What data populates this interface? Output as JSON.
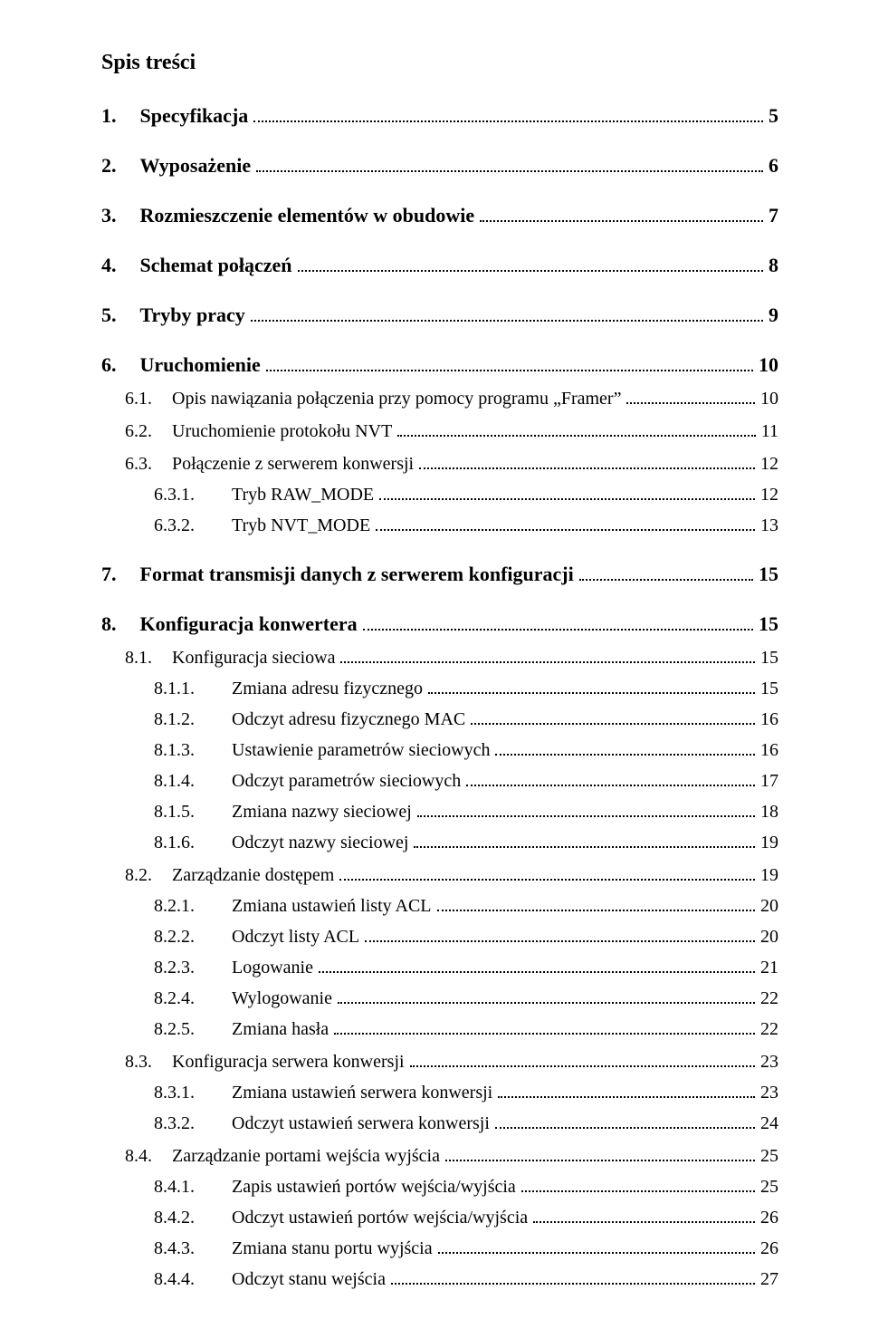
{
  "title": "Spis treści",
  "toc": [
    {
      "level": 1,
      "num": "1.",
      "text": "Specyfikacja",
      "page": "5"
    },
    {
      "level": 1,
      "num": "2.",
      "text": "Wyposażenie",
      "page": "6"
    },
    {
      "level": 1,
      "num": "3.",
      "text": "Rozmieszczenie elementów w obudowie",
      "page": "7"
    },
    {
      "level": 1,
      "num": "4.",
      "text": "Schemat połączeń",
      "page": "8"
    },
    {
      "level": 1,
      "num": "5.",
      "text": "Tryby pracy",
      "page": "9"
    },
    {
      "level": 1,
      "num": "6.",
      "text": "Uruchomienie",
      "page": "10"
    },
    {
      "level": 2,
      "num": "6.1.",
      "text": "Opis nawiązania połączenia przy pomocy programu „Framer”",
      "page": "10"
    },
    {
      "level": 2,
      "num": "6.2.",
      "text": "Uruchomienie protokołu NVT",
      "page": "11"
    },
    {
      "level": 2,
      "num": "6.3.",
      "text": "Połączenie z serwerem konwersji",
      "page": "12"
    },
    {
      "level": 3,
      "num": "6.3.1.",
      "text": "Tryb RAW_MODE",
      "page": "12"
    },
    {
      "level": 3,
      "num": "6.3.2.",
      "text": "Tryb NVT_MODE",
      "page": "13"
    },
    {
      "level": 1,
      "num": "7.",
      "text": "Format transmisji danych z serwerem konfiguracji",
      "page": "15"
    },
    {
      "level": 1,
      "num": "8.",
      "text": "Konfiguracja konwertera",
      "page": "15"
    },
    {
      "level": 2,
      "num": "8.1.",
      "text": "Konfiguracja sieciowa",
      "page": "15"
    },
    {
      "level": 3,
      "num": "8.1.1.",
      "text": "Zmiana adresu fizycznego",
      "page": "15"
    },
    {
      "level": 3,
      "num": "8.1.2.",
      "text": "Odczyt adresu fizycznego MAC",
      "page": "16"
    },
    {
      "level": 3,
      "num": "8.1.3.",
      "text": "Ustawienie parametrów sieciowych",
      "page": "16"
    },
    {
      "level": 3,
      "num": "8.1.4.",
      "text": "Odczyt parametrów sieciowych",
      "page": "17"
    },
    {
      "level": 3,
      "num": "8.1.5.",
      "text": "Zmiana nazwy sieciowej",
      "page": "18"
    },
    {
      "level": 3,
      "num": "8.1.6.",
      "text": "Odczyt nazwy sieciowej",
      "page": "19"
    },
    {
      "level": 2,
      "num": "8.2.",
      "text": "Zarządzanie dostępem",
      "page": "19"
    },
    {
      "level": 3,
      "num": "8.2.1.",
      "text": "Zmiana ustawień listy ACL",
      "page": "20"
    },
    {
      "level": 3,
      "num": "8.2.2.",
      "text": "Odczyt listy ACL",
      "page": "20"
    },
    {
      "level": 3,
      "num": "8.2.3.",
      "text": "Logowanie",
      "page": "21"
    },
    {
      "level": 3,
      "num": "8.2.4.",
      "text": "Wylogowanie",
      "page": "22"
    },
    {
      "level": 3,
      "num": "8.2.5.",
      "text": "Zmiana hasła",
      "page": "22"
    },
    {
      "level": 2,
      "num": "8.3.",
      "text": "Konfiguracja serwera konwersji",
      "page": "23"
    },
    {
      "level": 3,
      "num": "8.3.1.",
      "text": "Zmiana ustawień serwera konwersji",
      "page": "23"
    },
    {
      "level": 3,
      "num": "8.3.2.",
      "text": "Odczyt ustawień serwera konwersji",
      "page": "24"
    },
    {
      "level": 2,
      "num": "8.4.",
      "text": "Zarządzanie portami wejścia wyjścia",
      "page": "25"
    },
    {
      "level": 3,
      "num": "8.4.1.",
      "text": "Zapis ustawień portów wejścia/wyjścia",
      "page": "25"
    },
    {
      "level": 3,
      "num": "8.4.2.",
      "text": "Odczyt ustawień portów wejścia/wyjścia",
      "page": "26"
    },
    {
      "level": 3,
      "num": "8.4.3.",
      "text": "Zmiana stanu portu wyjścia",
      "page": "26"
    },
    {
      "level": 3,
      "num": "8.4.4.",
      "text": "Odczyt stanu wejścia",
      "page": "27"
    }
  ]
}
